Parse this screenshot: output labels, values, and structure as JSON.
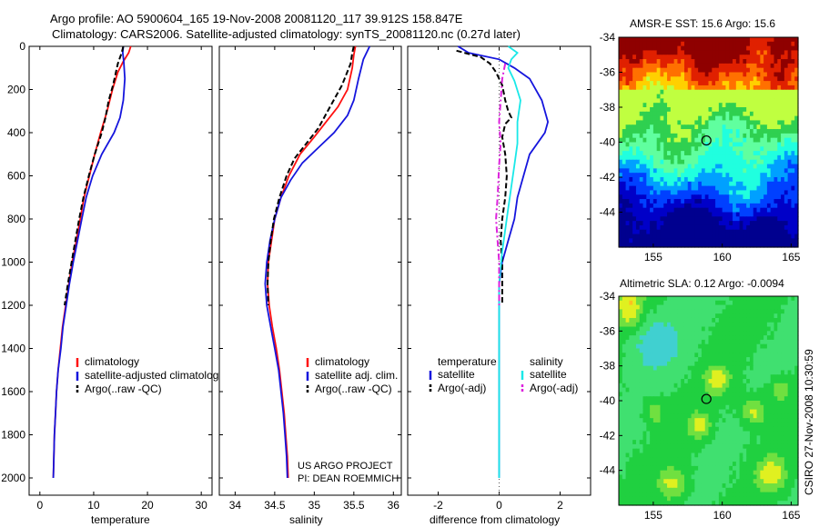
{
  "header": {
    "line1": "Argo profile: AO 5900604_165 19-Nov-2008 20081120_117 39.912S 158.847E",
    "line2": "Climatology: CARS2006. Satellite-adjusted climatology: synTS_20081120.nc (0.27d later)"
  },
  "sidebar_text": "CSIRO 27-Nov-2008 10:30:59",
  "credit": {
    "line1": "US ARGO PROJECT",
    "line2": "PI: DEAN ROEMMICH"
  },
  "colors": {
    "climatology": "#ff1010",
    "satellite": "#1515dd",
    "argo": "#000000",
    "salinity_satellite": "#19e8e8",
    "argo_adj_salinity": "#dd22dd"
  },
  "chart_data": [
    {
      "type": "line",
      "panel": "temperature profile",
      "xlabel": "temperature",
      "ylabel": "",
      "xlim": [
        -2,
        32
      ],
      "ylim": [
        2080,
        0
      ],
      "y_reversed": true,
      "xticks": [
        0,
        10,
        20,
        30
      ],
      "yticks": [
        0,
        200,
        400,
        600,
        800,
        1000,
        1200,
        1400,
        1600,
        1800,
        2000
      ],
      "legend": [
        "climatology",
        "satellite-adjusted climatology",
        "Argo(..raw -QC)"
      ],
      "series": [
        {
          "name": "climatology",
          "color": "#ff1010",
          "style": "solid",
          "points": [
            [
              16.9,
              0
            ],
            [
              16.5,
              30
            ],
            [
              15.5,
              70
            ],
            [
              14.5,
              120
            ],
            [
              13.5,
              200
            ],
            [
              12.5,
              300
            ],
            [
              11.3,
              400
            ],
            [
              10.2,
              500
            ],
            [
              9.2,
              600
            ],
            [
              8.2,
              700
            ],
            [
              7.5,
              800
            ],
            [
              6.8,
              900
            ],
            [
              6.0,
              1000
            ],
            [
              5.4,
              1100
            ],
            [
              4.8,
              1200
            ],
            [
              4.2,
              1300
            ],
            [
              3.8,
              1400
            ],
            [
              3.4,
              1500
            ],
            [
              3.1,
              1600
            ],
            [
              2.9,
              1700
            ],
            [
              2.7,
              1800
            ],
            [
              2.6,
              1900
            ],
            [
              2.5,
              2000
            ]
          ]
        },
        {
          "name": "satellite-adjusted climatology",
          "color": "#1515dd",
          "style": "solid",
          "points": [
            [
              15.5,
              0
            ],
            [
              15.4,
              30
            ],
            [
              15.6,
              70
            ],
            [
              15.8,
              150
            ],
            [
              15.5,
              250
            ],
            [
              14.9,
              330
            ],
            [
              13.8,
              400
            ],
            [
              11.5,
              500
            ],
            [
              9.8,
              600
            ],
            [
              8.6,
              700
            ],
            [
              7.8,
              800
            ],
            [
              7.0,
              900
            ],
            [
              6.2,
              1000
            ],
            [
              5.5,
              1100
            ],
            [
              4.9,
              1200
            ],
            [
              4.3,
              1300
            ],
            [
              3.9,
              1400
            ],
            [
              3.4,
              1500
            ],
            [
              3.1,
              1600
            ],
            [
              2.9,
              1700
            ],
            [
              2.7,
              1800
            ],
            [
              2.6,
              1900
            ],
            [
              2.5,
              2000
            ]
          ]
        },
        {
          "name": "Argo(..raw -QC)",
          "color": "#000000",
          "style": "dashed",
          "points": [
            [
              15.5,
              0
            ],
            [
              15.2,
              30
            ],
            [
              14.5,
              80
            ],
            [
              13.6,
              180
            ],
            [
              12.8,
              250
            ],
            [
              12.2,
              330
            ],
            [
              11.5,
              400
            ],
            [
              10.2,
              500
            ],
            [
              9.1,
              600
            ],
            [
              8.1,
              700
            ],
            [
              7.3,
              800
            ],
            [
              6.6,
              900
            ],
            [
              5.9,
              1000
            ],
            [
              5.2,
              1100
            ],
            [
              4.6,
              1200
            ]
          ]
        }
      ]
    },
    {
      "type": "line",
      "panel": "salinity profile",
      "xlabel": "salinity",
      "ylabel": "",
      "xlim": [
        33.8,
        36.1
      ],
      "ylim": [
        2080,
        0
      ],
      "y_reversed": true,
      "xticks": [
        34,
        34.5,
        35,
        35.5,
        36
      ],
      "legend": [
        "climatology",
        "satellite adj. clim.",
        "Argo(..raw -QC)"
      ],
      "series": [
        {
          "name": "climatology",
          "color": "#ff1010",
          "style": "solid",
          "points": [
            [
              35.52,
              0
            ],
            [
              35.5,
              40
            ],
            [
              35.48,
              100
            ],
            [
              35.42,
              200
            ],
            [
              35.3,
              280
            ],
            [
              35.15,
              350
            ],
            [
              35.0,
              420
            ],
            [
              34.82,
              500
            ],
            [
              34.68,
              600
            ],
            [
              34.58,
              700
            ],
            [
              34.5,
              800
            ],
            [
              34.46,
              900
            ],
            [
              34.42,
              1000
            ],
            [
              34.41,
              1100
            ],
            [
              34.43,
              1200
            ],
            [
              34.47,
              1300
            ],
            [
              34.52,
              1400
            ],
            [
              34.56,
              1500
            ],
            [
              34.59,
              1600
            ],
            [
              34.62,
              1700
            ],
            [
              34.64,
              1800
            ],
            [
              34.66,
              1900
            ],
            [
              34.67,
              2000
            ]
          ]
        },
        {
          "name": "satellite adj. clim.",
          "color": "#1515dd",
          "style": "solid",
          "points": [
            [
              35.7,
              0
            ],
            [
              35.62,
              60
            ],
            [
              35.56,
              150
            ],
            [
              35.5,
              250
            ],
            [
              35.42,
              320
            ],
            [
              35.25,
              400
            ],
            [
              35.05,
              470
            ],
            [
              34.85,
              540
            ],
            [
              34.7,
              620
            ],
            [
              34.58,
              700
            ],
            [
              34.5,
              800
            ],
            [
              34.44,
              900
            ],
            [
              34.4,
              1000
            ],
            [
              34.38,
              1100
            ],
            [
              34.4,
              1200
            ],
            [
              34.45,
              1300
            ],
            [
              34.5,
              1400
            ],
            [
              34.55,
              1500
            ],
            [
              34.58,
              1600
            ],
            [
              34.61,
              1700
            ],
            [
              34.63,
              1800
            ],
            [
              34.65,
              1900
            ],
            [
              34.66,
              2000
            ]
          ]
        },
        {
          "name": "Argo(..raw -QC)",
          "color": "#000000",
          "style": "dashed",
          "points": [
            [
              35.5,
              0
            ],
            [
              35.48,
              30
            ],
            [
              35.46,
              80
            ],
            [
              35.35,
              180
            ],
            [
              35.2,
              280
            ],
            [
              35.05,
              380
            ],
            [
              34.9,
              450
            ],
            [
              34.75,
              520
            ],
            [
              34.65,
              600
            ],
            [
              34.56,
              700
            ],
            [
              34.49,
              800
            ],
            [
              34.45,
              900
            ],
            [
              34.42,
              1000
            ],
            [
              34.41,
              1100
            ],
            [
              34.42,
              1200
            ]
          ]
        }
      ]
    },
    {
      "type": "line",
      "panel": "difference from climatology",
      "xlabel": "difference from climatology",
      "ylabel": "",
      "xlim": [
        -3,
        3
      ],
      "ylim": [
        2080,
        0
      ],
      "y_reversed": true,
      "xticks": [
        -2,
        0,
        2
      ],
      "legend_groups": {
        "temperature": [
          "satellite",
          "Argo(-adj)"
        ],
        "salinity": [
          "satellite",
          "Argo(-adj)"
        ]
      },
      "series": [
        {
          "name": "temperature satellite",
          "color": "#1515dd",
          "style": "solid",
          "points": [
            [
              -1.35,
              0
            ],
            [
              -1.0,
              30
            ],
            [
              0.0,
              60
            ],
            [
              0.5,
              100
            ],
            [
              1.0,
              150
            ],
            [
              1.4,
              250
            ],
            [
              1.6,
              350
            ],
            [
              1.5,
              400
            ],
            [
              1.0,
              500
            ],
            [
              0.8,
              600
            ],
            [
              0.6,
              700
            ],
            [
              0.5,
              800
            ],
            [
              0.3,
              900
            ],
            [
              0.1,
              1000
            ],
            [
              0.0,
              1100
            ],
            [
              0.0,
              1200
            ],
            [
              0.0,
              1300
            ],
            [
              0.0,
              1600
            ],
            [
              0.0,
              2000
            ]
          ]
        },
        {
          "name": "temperature Argo(-adj)",
          "color": "#000000",
          "style": "dashed",
          "points": [
            [
              -1.4,
              20
            ],
            [
              -0.6,
              50
            ],
            [
              -0.3,
              80
            ],
            [
              -0.1,
              120
            ],
            [
              0.1,
              180
            ],
            [
              0.2,
              250
            ],
            [
              0.3,
              300
            ],
            [
              0.4,
              330
            ],
            [
              0.2,
              360
            ],
            [
              0.1,
              420
            ],
            [
              0.2,
              500
            ],
            [
              0.25,
              600
            ],
            [
              0.2,
              700
            ],
            [
              0.1,
              800
            ],
            [
              0.05,
              900
            ],
            [
              0.1,
              1000
            ],
            [
              0.1,
              1100
            ],
            [
              0.1,
              1200
            ]
          ]
        },
        {
          "name": "salinity satellite",
          "color": "#19e8e8",
          "style": "solid",
          "points": [
            [
              0.3,
              0
            ],
            [
              0.6,
              30
            ],
            [
              0.4,
              60
            ],
            [
              0.3,
              100
            ],
            [
              0.5,
              160
            ],
            [
              0.7,
              250
            ],
            [
              0.6,
              350
            ],
            [
              0.6,
              450
            ],
            [
              0.5,
              550
            ],
            [
              0.4,
              650
            ],
            [
              0.3,
              750
            ],
            [
              0.2,
              850
            ],
            [
              0.1,
              950
            ],
            [
              0.0,
              1100
            ],
            [
              0.0,
              1300
            ],
            [
              0.0,
              1600
            ],
            [
              0.0,
              2000
            ]
          ]
        },
        {
          "name": "salinity Argo(-adj)",
          "color": "#dd22dd",
          "style": "dashdot",
          "points": [
            [
              0.2,
              80
            ],
            [
              0.1,
              150
            ],
            [
              0.05,
              250
            ],
            [
              0.0,
              350
            ],
            [
              0.05,
              450
            ],
            [
              0.0,
              550
            ],
            [
              -0.05,
              700
            ],
            [
              -0.1,
              800
            ],
            [
              -0.05,
              900
            ],
            [
              0.0,
              1000
            ],
            [
              0.0,
              1100
            ],
            [
              0.0,
              1200
            ]
          ]
        }
      ]
    },
    {
      "type": "heatmap",
      "panel": "SST map",
      "title": "AMSR-E SST: 15.6 Argo: 15.6",
      "xlim": [
        152.5,
        165.5
      ],
      "ylim": [
        -46,
        -34
      ],
      "xticks": [
        155,
        160,
        165
      ],
      "yticks": [
        -34,
        -36,
        -38,
        -40,
        -42,
        -44
      ],
      "marker": {
        "lon": 158.85,
        "lat": -39.9
      },
      "colors": [
        "#00008f",
        "#0000c8",
        "#0040ff",
        "#00a0ff",
        "#20ffdf",
        "#60ff9f",
        "#2fd050",
        "#c0ff40",
        "#ffd000",
        "#ff7000",
        "#e02000",
        "#8f0000"
      ]
    },
    {
      "type": "heatmap",
      "panel": "SLA map",
      "title": "Altimetric SLA: 0.12 Argo: -0.0094",
      "xlim": [
        152.5,
        165.5
      ],
      "ylim": [
        -46,
        -34
      ],
      "xticks": [
        155,
        160,
        165
      ],
      "yticks": [
        -34,
        -36,
        -38,
        -40,
        -42,
        -44
      ],
      "marker": {
        "lon": 158.85,
        "lat": -39.9
      },
      "colors": [
        "#1aa0ff",
        "#40d0d0",
        "#40e070",
        "#20d040",
        "#70e040",
        "#e0f020",
        "#ffc020",
        "#ff8000"
      ]
    }
  ]
}
